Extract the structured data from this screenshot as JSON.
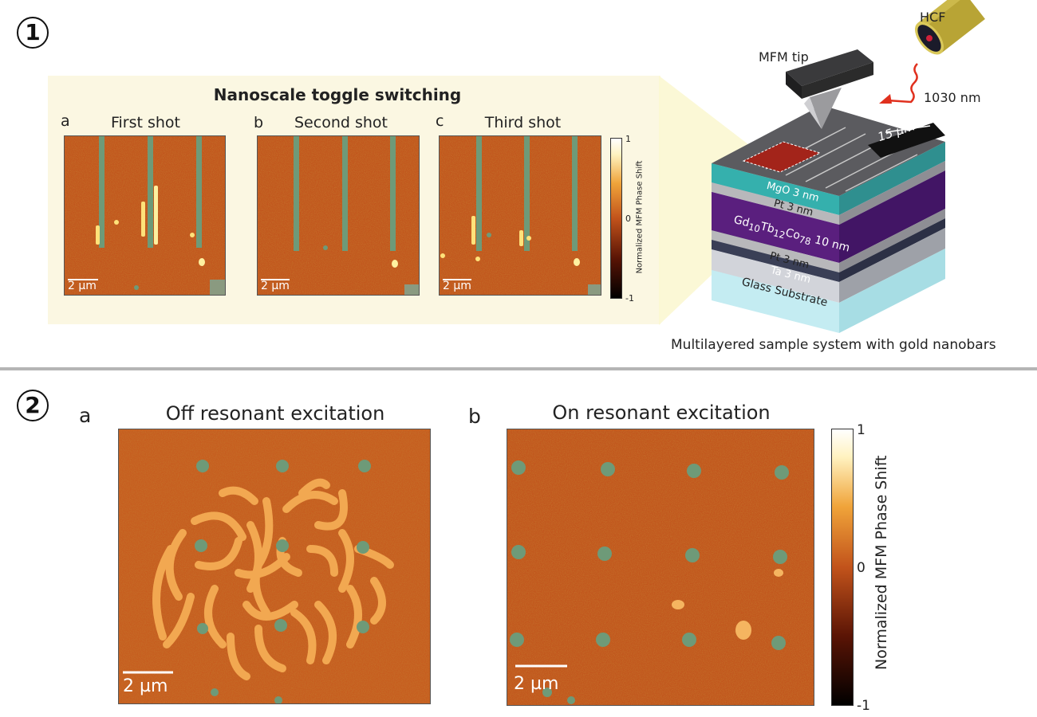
{
  "sections": [
    {
      "number": "1"
    },
    {
      "number": "2"
    }
  ],
  "section1": {
    "inset_title": "Nanoscale toggle switching",
    "panels": [
      {
        "letter": "a",
        "title": "First shot",
        "scale": "2 µm"
      },
      {
        "letter": "b",
        "title": "Second shot",
        "scale": "2 µm"
      },
      {
        "letter": "c",
        "title": "Third shot",
        "scale": "2 µm"
      }
    ],
    "colorbar": {
      "label": "Normalized MFM Phase Shift",
      "max": "1",
      "mid": "0",
      "min": "-1"
    },
    "schematic": {
      "hcf": "HCF",
      "mfm_tip": "MFM tip",
      "wavelength": "1030 nm",
      "scale": "15 µm",
      "layers": [
        "MgO 3 nm",
        "Pt 3 nm",
        "Gd10Tb12Co78 10 nm",
        "Pt 3 nm",
        "Ta 3 nm",
        "Glass Substrate"
      ],
      "alloy": {
        "gd": "Gd",
        "gd_sub": "10",
        "tb": "Tb",
        "tb_sub": "12",
        "co": "Co",
        "co_sub": "78",
        "thickness": "10 nm"
      },
      "caption": "Multilayered sample system with gold nanobars",
      "colors": {
        "mgo": "#2fa3a0",
        "pt": "#a9a9ad",
        "gdtbco": "#5a1f7e",
        "ta": "#3a3f56",
        "glass": "#bfe8ee",
        "top": "#5b5b5f",
        "tip": "#2b2b2b",
        "fiber": "#b8a435",
        "laser": "#e0301e",
        "marked_area": "#a3241a"
      }
    }
  },
  "section2": {
    "panels": [
      {
        "letter": "a",
        "title": "Off resonant excitation",
        "scale": "2 µm"
      },
      {
        "letter": "b",
        "title": "On resonant excitation",
        "scale": "2 µm"
      }
    ],
    "colorbar": {
      "label": "Normalized MFM Phase Shift",
      "max": "1",
      "mid": "0",
      "min": "-1"
    }
  },
  "colormap": {
    "stops": [
      "#000000",
      "#5a1405",
      "#c2531b",
      "#f0a43a",
      "#fff8d8",
      "#ffffff"
    ],
    "background": "#c2531b",
    "domain": "#f5b560",
    "nanobar": "#6e9a78"
  }
}
